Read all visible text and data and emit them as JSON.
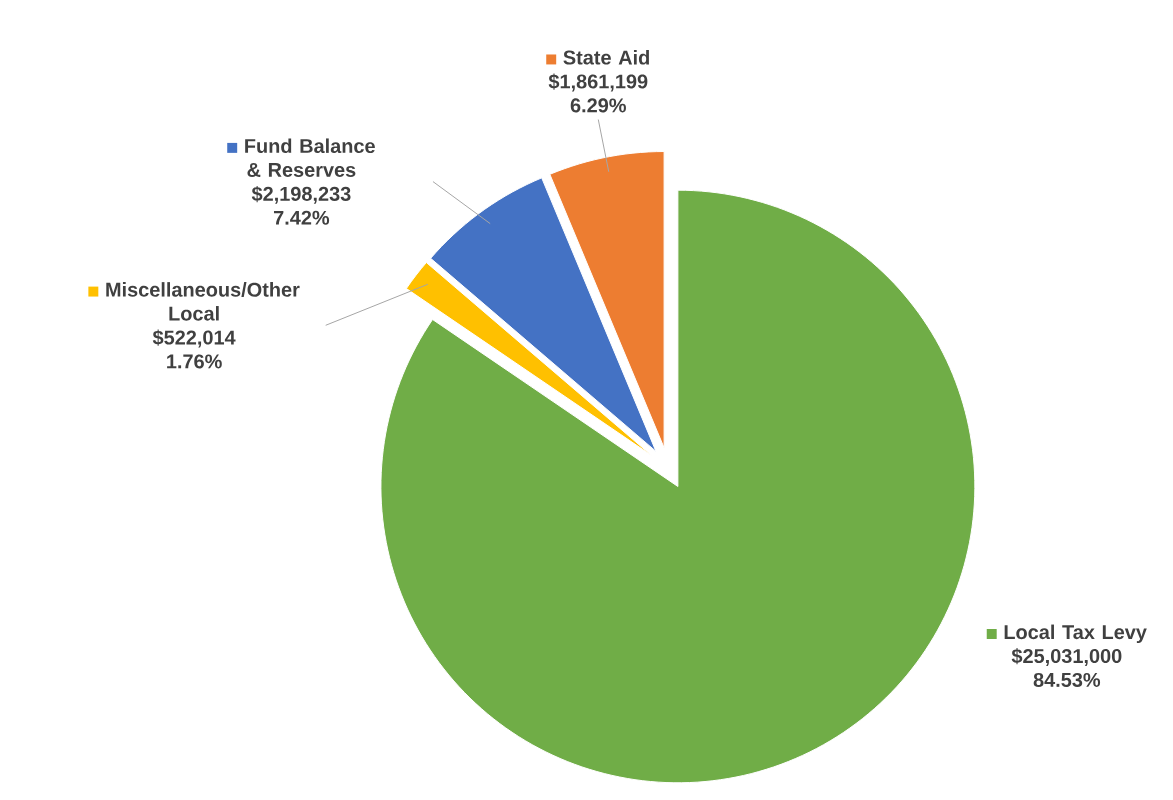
{
  "chart_data": {
    "type": "pie",
    "categories": [
      "Local Tax Levy",
      "Miscellaneous/Other Local",
      "Fund Balance & Reserves",
      "State Aid"
    ],
    "values": [
      25031000,
      522014,
      2198233,
      1861199
    ],
    "colors": [
      "#70ad47",
      "#ffc000",
      "#4472c4",
      "#ed7d31"
    ],
    "value_labels": [
      "$25,031,000",
      "$522,014",
      "$2,198,233",
      "$1,861,199"
    ],
    "annotations": [
      "84.53%",
      "1.76%",
      "7.42%",
      "6.29%"
    ],
    "legend": "top left"
  }
}
